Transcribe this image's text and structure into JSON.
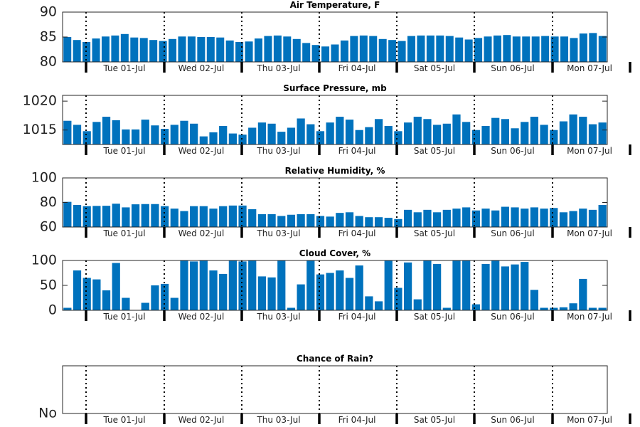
{
  "colors": {
    "bar": "#0072bd",
    "axis": "#262626",
    "separator": "#000000",
    "text": "#222222"
  },
  "chart_data": [
    {
      "type": "bar",
      "title": "Air Temperature, F",
      "ylim": [
        80,
        90
      ],
      "yticks": [
        80,
        85,
        90
      ],
      "yticklabels": [
        "80",
        "85",
        "90"
      ],
      "xticklabels": [
        "Tue 01-Jul",
        "Wed 02-Jul",
        "Thu 03-Jul",
        "Fri 04-Jul",
        "Sat 05-Jul",
        "Sun 06-Jul",
        "Mon 07-Jul"
      ],
      "day_separators": true,
      "values": [
        85.0,
        84.4,
        84.0,
        84.7,
        85.1,
        85.3,
        85.6,
        84.9,
        84.8,
        84.4,
        84.2,
        84.6,
        85.1,
        85.1,
        85.0,
        85.0,
        84.9,
        84.3,
        84.0,
        84.1,
        84.7,
        85.2,
        85.3,
        85.1,
        84.6,
        83.8,
        83.4,
        83.1,
        83.5,
        84.3,
        85.2,
        85.3,
        85.2,
        84.6,
        84.4,
        84.2,
        85.2,
        85.3,
        85.3,
        85.3,
        85.2,
        84.9,
        84.5,
        84.8,
        85.1,
        85.3,
        85.4,
        85.1,
        85.1,
        85.1,
        85.2,
        85.1,
        85.1,
        84.8,
        85.7,
        85.8,
        85.2
      ]
    },
    {
      "type": "bar",
      "title": "Surface Pressure, mb",
      "ylim": [
        1012.5,
        1021
      ],
      "yticks": [
        1015,
        1020
      ],
      "yticklabels": [
        "1015",
        "1020"
      ],
      "xticklabels": [
        "Tue 01-Jul",
        "Wed 02-Jul",
        "Thu 03-Jul",
        "Fri 04-Jul",
        "Sat 05-Jul",
        "Sun 06-Jul",
        "Mon 07-Jul"
      ],
      "day_separators": true,
      "values": [
        1016.6,
        1015.9,
        1014.8,
        1016.4,
        1017.3,
        1016.7,
        1015.1,
        1015.1,
        1016.8,
        1015.8,
        1015.2,
        1015.9,
        1016.6,
        1016.1,
        1013.9,
        1014.6,
        1015.7,
        1014.4,
        1014.2,
        1015.4,
        1016.3,
        1016.1,
        1014.7,
        1015.4,
        1017.0,
        1016.0,
        1014.8,
        1016.3,
        1017.3,
        1016.8,
        1015.0,
        1015.5,
        1016.9,
        1015.7,
        1014.8,
        1016.3,
        1017.3,
        1016.9,
        1015.9,
        1016.1,
        1017.7,
        1016.4,
        1015.0,
        1015.7,
        1017.1,
        1016.9,
        1015.3,
        1016.4,
        1017.3,
        1015.9,
        1015.0,
        1016.5,
        1017.7,
        1017.3,
        1016.0,
        1016.3
      ]
    },
    {
      "type": "bar",
      "title": "Relative Humidity, %",
      "ylim": [
        60,
        100
      ],
      "yticks": [
        60,
        80,
        100
      ],
      "yticklabels": [
        "60",
        "80",
        "100"
      ],
      "xticklabels": [
        "Tue 01-Jul",
        "Wed 02-Jul",
        "Thu 03-Jul",
        "Fri 04-Jul",
        "Sat 05-Jul",
        "Sun 06-Jul",
        "Mon 07-Jul"
      ],
      "day_separators": true,
      "values": [
        80.5,
        78.0,
        77.0,
        77.2,
        77.3,
        79.0,
        76.0,
        78.5,
        78.7,
        78.7,
        77.0,
        75.0,
        73.0,
        77.0,
        77.0,
        75.0,
        77.0,
        77.5,
        77.5,
        74.5,
        70.5,
        70.5,
        69.0,
        70.0,
        70.5,
        70.5,
        69.0,
        68.5,
        71.5,
        72.0,
        69.0,
        68.0,
        68.0,
        67.5,
        66.5,
        74.0,
        72.0,
        74.0,
        72.0,
        74.0,
        75.0,
        76.0,
        73.5,
        75.0,
        73.5,
        76.5,
        76.0,
        75.0,
        76.0,
        75.0,
        75.5,
        72.0,
        73.0,
        75.0,
        74.0,
        78.0
      ]
    },
    {
      "type": "bar",
      "title": "Cloud Cover, %",
      "ylim": [
        0,
        100
      ],
      "yticks": [
        0,
        50,
        100
      ],
      "yticklabels": [
        "0",
        "50",
        "100"
      ],
      "xticklabels": [
        "Tue 01-Jul",
        "Wed 02-Jul",
        "Thu 03-Jul",
        "Fri 04-Jul",
        "Sat 05-Jul",
        "Sun 06-Jul",
        "Mon 07-Jul"
      ],
      "day_separators": true,
      "values": [
        5,
        80,
        65,
        62,
        40,
        95,
        25,
        0,
        15,
        50,
        53,
        25,
        100,
        98,
        100,
        80,
        73,
        100,
        98,
        100,
        68,
        66,
        100,
        5,
        52,
        100,
        72,
        75,
        80,
        65,
        90,
        28,
        18,
        100,
        45,
        96,
        22,
        100,
        93,
        5,
        100,
        100,
        12,
        93,
        100,
        88,
        92,
        97,
        41,
        5,
        5,
        6,
        14,
        63,
        5,
        5
      ]
    },
    {
      "type": "bar",
      "title": "Chance of Rain?",
      "ylim": [
        0,
        1
      ],
      "yticks": [
        0
      ],
      "yticklabels": [
        "No"
      ],
      "xticklabels": [
        "Tue 01-Jul",
        "Wed 02-Jul",
        "Thu 03-Jul",
        "Fri 04-Jul",
        "Sat 05-Jul",
        "Sun 06-Jul",
        "Mon 07-Jul"
      ],
      "day_separators": true,
      "values": []
    }
  ]
}
